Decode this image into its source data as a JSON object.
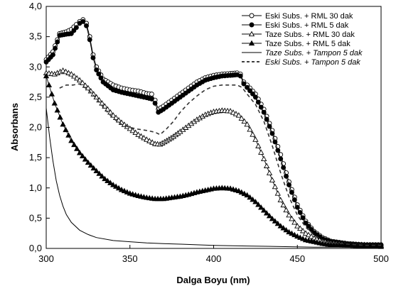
{
  "chart_data": {
    "type": "line",
    "title": "",
    "xlabel": "Dalga Boyu (nm)",
    "ylabel": "Absorbans",
    "xlim": [
      300,
      500
    ],
    "ylim": [
      0,
      4
    ],
    "xticks": [
      "300",
      "350",
      "400",
      "450",
      "500"
    ],
    "yticks": [
      "0,0",
      "0,5",
      "1,0",
      "1,5",
      "2,0",
      "2,5",
      "3,0",
      "3,5",
      "4,0"
    ],
    "legend_position": "top-right",
    "grid": false,
    "series": [
      {
        "name": "Eski Subs.  + RML 30 dak",
        "marker": "circle-open",
        "line": "solid",
        "points": [
          [
            300,
            3.12
          ],
          [
            304,
            3.25
          ],
          [
            308,
            3.55
          ],
          [
            312,
            3.58
          ],
          [
            315,
            3.62
          ],
          [
            318,
            3.7
          ],
          [
            320,
            3.75
          ],
          [
            322,
            3.78
          ],
          [
            324,
            3.72
          ],
          [
            326,
            3.5
          ],
          [
            328,
            3.2
          ],
          [
            330,
            3.0
          ],
          [
            334,
            2.8
          ],
          [
            340,
            2.7
          ],
          [
            345,
            2.65
          ],
          [
            350,
            2.62
          ],
          [
            355,
            2.6
          ],
          [
            360,
            2.56
          ],
          [
            363,
            2.55
          ],
          [
            365,
            2.45
          ],
          [
            367,
            2.3
          ],
          [
            370,
            2.35
          ],
          [
            375,
            2.45
          ],
          [
            380,
            2.55
          ],
          [
            385,
            2.65
          ],
          [
            390,
            2.75
          ],
          [
            395,
            2.82
          ],
          [
            400,
            2.86
          ],
          [
            405,
            2.88
          ],
          [
            410,
            2.89
          ],
          [
            414,
            2.9
          ],
          [
            416,
            2.88
          ],
          [
            418,
            2.75
          ],
          [
            420,
            2.7
          ],
          [
            425,
            2.55
          ],
          [
            430,
            2.3
          ],
          [
            435,
            1.95
          ],
          [
            440,
            1.55
          ],
          [
            445,
            1.1
          ],
          [
            450,
            0.72
          ],
          [
            455,
            0.45
          ],
          [
            460,
            0.28
          ],
          [
            465,
            0.18
          ],
          [
            470,
            0.12
          ],
          [
            480,
            0.08
          ],
          [
            490,
            0.06
          ],
          [
            500,
            0.06
          ]
        ]
      },
      {
        "name": "Eski Subs.  + RML 5 dak",
        "marker": "circle-filled",
        "line": "solid",
        "points": [
          [
            300,
            3.08
          ],
          [
            304,
            3.2
          ],
          [
            308,
            3.52
          ],
          [
            312,
            3.54
          ],
          [
            315,
            3.55
          ],
          [
            318,
            3.65
          ],
          [
            320,
            3.72
          ],
          [
            322,
            3.75
          ],
          [
            324,
            3.68
          ],
          [
            326,
            3.45
          ],
          [
            328,
            3.15
          ],
          [
            330,
            2.95
          ],
          [
            334,
            2.75
          ],
          [
            340,
            2.62
          ],
          [
            345,
            2.58
          ],
          [
            350,
            2.55
          ],
          [
            355,
            2.52
          ],
          [
            360,
            2.49
          ],
          [
            363,
            2.47
          ],
          [
            365,
            2.4
          ],
          [
            367,
            2.25
          ],
          [
            370,
            2.3
          ],
          [
            375,
            2.4
          ],
          [
            380,
            2.5
          ],
          [
            385,
            2.6
          ],
          [
            390,
            2.7
          ],
          [
            395,
            2.78
          ],
          [
            400,
            2.82
          ],
          [
            405,
            2.85
          ],
          [
            410,
            2.86
          ],
          [
            414,
            2.87
          ],
          [
            416,
            2.85
          ],
          [
            418,
            2.72
          ],
          [
            420,
            2.66
          ],
          [
            425,
            2.5
          ],
          [
            430,
            2.25
          ],
          [
            435,
            1.9
          ],
          [
            440,
            1.48
          ],
          [
            445,
            1.05
          ],
          [
            450,
            0.68
          ],
          [
            455,
            0.42
          ],
          [
            460,
            0.26
          ],
          [
            465,
            0.16
          ],
          [
            470,
            0.11
          ],
          [
            480,
            0.07
          ],
          [
            490,
            0.05
          ],
          [
            500,
            0.05
          ]
        ]
      },
      {
        "name": "Taze Subs. + RML 30 dak",
        "marker": "triangle-open",
        "line": "solid",
        "points": [
          [
            300,
            2.9
          ],
          [
            305,
            2.88
          ],
          [
            310,
            2.94
          ],
          [
            315,
            2.88
          ],
          [
            320,
            2.78
          ],
          [
            325,
            2.65
          ],
          [
            330,
            2.5
          ],
          [
            335,
            2.35
          ],
          [
            340,
            2.2
          ],
          [
            345,
            2.08
          ],
          [
            350,
            1.98
          ],
          [
            355,
            1.88
          ],
          [
            360,
            1.8
          ],
          [
            365,
            1.73
          ],
          [
            368,
            1.72
          ],
          [
            372,
            1.78
          ],
          [
            376,
            1.85
          ],
          [
            380,
            1.93
          ],
          [
            385,
            2.03
          ],
          [
            390,
            2.13
          ],
          [
            395,
            2.21
          ],
          [
            400,
            2.26
          ],
          [
            405,
            2.28
          ],
          [
            410,
            2.27
          ],
          [
            415,
            2.2
          ],
          [
            420,
            2.05
          ],
          [
            425,
            1.8
          ],
          [
            430,
            1.48
          ],
          [
            435,
            1.13
          ],
          [
            440,
            0.8
          ],
          [
            445,
            0.55
          ],
          [
            450,
            0.37
          ],
          [
            455,
            0.25
          ],
          [
            460,
            0.17
          ],
          [
            465,
            0.12
          ],
          [
            470,
            0.09
          ],
          [
            480,
            0.07
          ],
          [
            490,
            0.06
          ],
          [
            500,
            0.05
          ]
        ]
      },
      {
        "name": "Taze Subs. + RML 5 dak",
        "marker": "triangle-filled",
        "line": "solid",
        "points": [
          [
            300,
            2.85
          ],
          [
            305,
            2.4
          ],
          [
            310,
            2.05
          ],
          [
            315,
            1.78
          ],
          [
            320,
            1.58
          ],
          [
            325,
            1.42
          ],
          [
            330,
            1.28
          ],
          [
            335,
            1.15
          ],
          [
            340,
            1.05
          ],
          [
            345,
            0.97
          ],
          [
            350,
            0.91
          ],
          [
            355,
            0.87
          ],
          [
            360,
            0.84
          ],
          [
            365,
            0.82
          ],
          [
            370,
            0.82
          ],
          [
            375,
            0.84
          ],
          [
            380,
            0.86
          ],
          [
            385,
            0.89
          ],
          [
            390,
            0.93
          ],
          [
            395,
            0.96
          ],
          [
            400,
            0.99
          ],
          [
            405,
            1.0
          ],
          [
            410,
            0.99
          ],
          [
            415,
            0.95
          ],
          [
            420,
            0.88
          ],
          [
            425,
            0.77
          ],
          [
            430,
            0.63
          ],
          [
            435,
            0.49
          ],
          [
            440,
            0.37
          ],
          [
            445,
            0.27
          ],
          [
            450,
            0.2
          ],
          [
            455,
            0.14
          ],
          [
            460,
            0.11
          ],
          [
            465,
            0.08
          ],
          [
            470,
            0.06
          ],
          [
            480,
            0.05
          ],
          [
            490,
            0.04
          ],
          [
            500,
            0.03
          ]
        ]
      },
      {
        "name": "Taze Subs. + Tampon 5 dak",
        "marker": "none",
        "line": "solid",
        "points": [
          [
            300,
            2.32
          ],
          [
            302,
            1.85
          ],
          [
            304,
            1.45
          ],
          [
            306,
            1.12
          ],
          [
            308,
            0.88
          ],
          [
            310,
            0.7
          ],
          [
            312,
            0.56
          ],
          [
            315,
            0.43
          ],
          [
            320,
            0.3
          ],
          [
            325,
            0.23
          ],
          [
            330,
            0.18
          ],
          [
            340,
            0.13
          ],
          [
            350,
            0.11
          ],
          [
            360,
            0.09
          ],
          [
            370,
            0.08
          ],
          [
            380,
            0.07
          ],
          [
            390,
            0.06
          ],
          [
            400,
            0.05
          ],
          [
            420,
            0.04
          ],
          [
            440,
            0.03
          ],
          [
            460,
            0.02
          ],
          [
            480,
            0.02
          ],
          [
            500,
            0.01
          ]
        ]
      },
      {
        "name": "Eski Subs. + Tampon 5 dak",
        "marker": "none",
        "line": "dashed",
        "points": [
          [
            308,
            2.65
          ],
          [
            312,
            2.7
          ],
          [
            316,
            2.7
          ],
          [
            320,
            2.72
          ],
          [
            325,
            2.62
          ],
          [
            330,
            2.48
          ],
          [
            335,
            2.3
          ],
          [
            340,
            2.15
          ],
          [
            345,
            2.05
          ],
          [
            350,
            2.0
          ],
          [
            355,
            1.97
          ],
          [
            360,
            1.95
          ],
          [
            365,
            1.92
          ],
          [
            368,
            1.88
          ],
          [
            372,
            1.98
          ],
          [
            376,
            2.1
          ],
          [
            380,
            2.25
          ],
          [
            385,
            2.4
          ],
          [
            390,
            2.52
          ],
          [
            395,
            2.62
          ],
          [
            400,
            2.68
          ],
          [
            405,
            2.7
          ],
          [
            410,
            2.7
          ],
          [
            414,
            2.7
          ],
          [
            417,
            2.66
          ],
          [
            420,
            2.55
          ],
          [
            425,
            2.38
          ],
          [
            430,
            2.1
          ],
          [
            435,
            1.7
          ],
          [
            440,
            1.25
          ],
          [
            445,
            0.85
          ],
          [
            450,
            0.55
          ],
          [
            455,
            0.35
          ],
          [
            460,
            0.22
          ],
          [
            465,
            0.14
          ],
          [
            470,
            0.1
          ],
          [
            480,
            0.07
          ],
          [
            490,
            0.05
          ],
          [
            500,
            0.05
          ]
        ]
      }
    ]
  }
}
